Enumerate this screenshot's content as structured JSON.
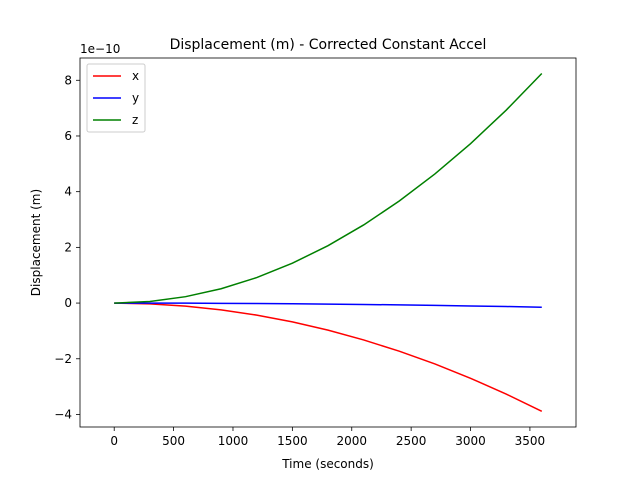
{
  "chart_data": {
    "type": "line",
    "title": "Displacement (m) - Corrected Constant Accel",
    "xlabel": "Time (seconds)",
    "ylabel": "Displacement (m)",
    "y_offset_text": "1e−10",
    "y_scale_factor": 1e-10,
    "xlim": [
      -288,
      3888
    ],
    "ylim": [
      -4.45,
      8.8
    ],
    "x_ticks": [
      0,
      500,
      1000,
      1500,
      2000,
      2500,
      3000,
      3500
    ],
    "x_tick_labels": [
      "0",
      "500",
      "1000",
      "1500",
      "2000",
      "2500",
      "3000",
      "3500"
    ],
    "y_ticks": [
      -4,
      -2,
      0,
      2,
      4,
      6,
      8
    ],
    "y_tick_labels": [
      "−4",
      "−2",
      "0",
      "2",
      "4",
      "6",
      "8"
    ],
    "grid": false,
    "legend_placement": "upper-left",
    "x": [
      0,
      300,
      600,
      900,
      1200,
      1500,
      1800,
      2100,
      2400,
      2700,
      3000,
      3300,
      3600
    ],
    "series": [
      {
        "name": "x",
        "color": "#ff0000",
        "values": [
          0,
          -0.027,
          -0.108,
          -0.243,
          -0.432,
          -0.675,
          -0.972,
          -1.323,
          -1.728,
          -2.187,
          -2.7,
          -3.267,
          -3.888
        ]
      },
      {
        "name": "y",
        "color": "#0000ff",
        "values": [
          0,
          -0.001,
          -0.004,
          -0.009,
          -0.016,
          -0.026,
          -0.037,
          -0.05,
          -0.066,
          -0.083,
          -0.103,
          -0.124,
          -0.148
        ]
      },
      {
        "name": "z",
        "color": "#008000",
        "values": [
          0,
          0.057,
          0.229,
          0.515,
          0.916,
          1.431,
          2.061,
          2.805,
          3.664,
          4.637,
          5.725,
          6.927,
          8.244
        ]
      }
    ]
  }
}
